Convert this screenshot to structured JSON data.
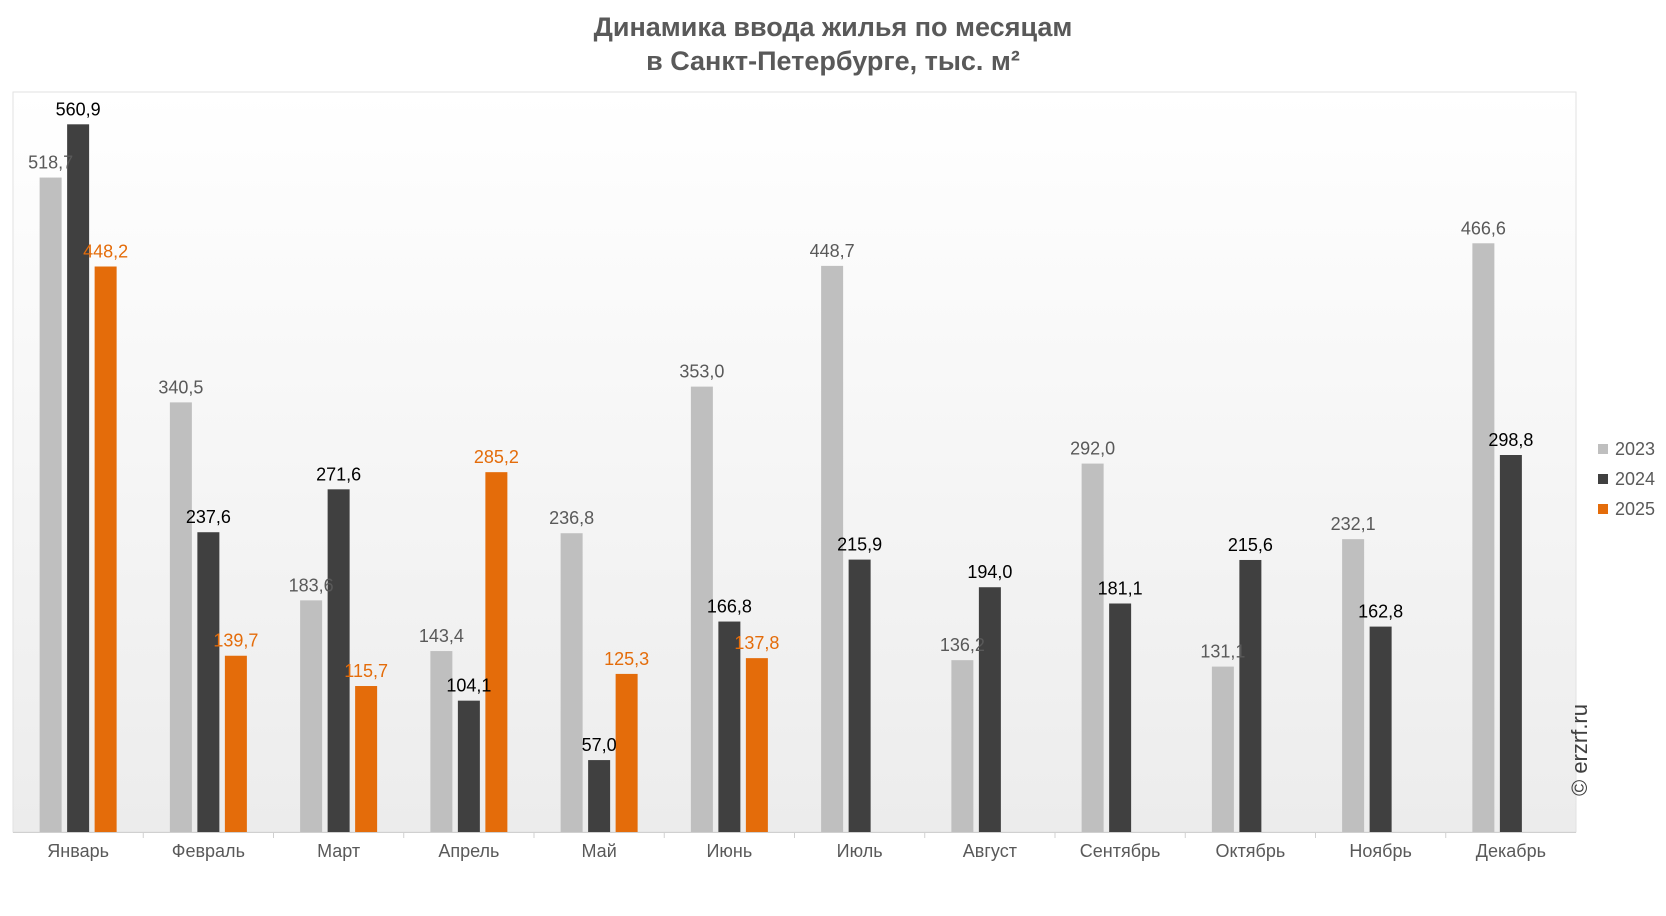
{
  "title": {
    "line1": "Динамика ввода жилья по месяцам",
    "line2": "в Санкт-Петербурге, тыс. м²"
  },
  "watermark": "© erzrf.ru",
  "legend": [
    {
      "name": "2023",
      "color": "#bfbfbf"
    },
    {
      "name": "2024",
      "color": "#404040"
    },
    {
      "name": "2025",
      "color": "#e46c0a"
    }
  ],
  "chart_data": {
    "type": "bar",
    "title": "Динамика ввода жилья по месяцам в Санкт-Петербурге, тыс. м²",
    "categories": [
      "Январь",
      "Февраль",
      "Март",
      "Апрель",
      "Май",
      "Июнь",
      "Июль",
      "Август",
      "Сентябрь",
      "Октябрь",
      "Ноябрь",
      "Декабрь"
    ],
    "series": [
      {
        "name": "2023",
        "color": "#bfbfbf",
        "label_color": "#595959",
        "values": [
          518.7,
          340.5,
          183.6,
          143.4,
          236.8,
          353.0,
          448.7,
          136.2,
          292.0,
          131.1,
          232.1,
          466.6
        ],
        "labels": [
          "518,7",
          "340,5",
          "183,6",
          "143,4",
          "236,8",
          "353,0",
          "448,7",
          "136,2",
          "292,0",
          "131,1",
          "232,1",
          "466,6"
        ]
      },
      {
        "name": "2024",
        "color": "#404040",
        "label_color": "#000000",
        "values": [
          560.9,
          237.6,
          271.6,
          104.1,
          57.0,
          166.8,
          215.9,
          194.0,
          181.1,
          215.6,
          162.8,
          298.8
        ],
        "labels": [
          "560,9",
          "237,6",
          "271,6",
          "104,1",
          "57,0",
          "166,8",
          "215,9",
          "194,0",
          "181,1",
          "215,6",
          "162,8",
          "298,8"
        ]
      },
      {
        "name": "2025",
        "color": "#e46c0a",
        "label_color": "#e46c0a",
        "values": [
          448.2,
          139.7,
          115.7,
          285.2,
          125.3,
          137.8,
          null,
          null,
          null,
          null,
          null,
          null
        ],
        "labels": [
          "448,2",
          "139,7",
          "115,7",
          "285,2",
          "125,3",
          "137,8",
          "",
          "",
          "",
          "",
          "",
          ""
        ]
      }
    ],
    "ylim": [
      0,
      600
    ],
    "xlabel": "",
    "ylabel": "",
    "grid": false,
    "legend_position": "right"
  }
}
